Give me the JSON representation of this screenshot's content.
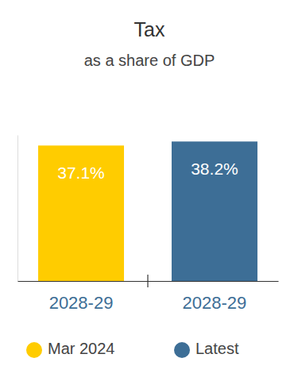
{
  "chart_data": {
    "type": "bar",
    "title": "Tax",
    "subtitle": "as a share of GDP",
    "categories": [
      "2028-29",
      "2028-29"
    ],
    "series": [
      {
        "name": "Mar 2024",
        "color": "#ffcc00",
        "values": [
          37.1,
          null
        ],
        "value_labels": [
          "37.1%",
          null
        ]
      },
      {
        "name": "Latest",
        "color": "#3d6e96",
        "values": [
          null,
          38.2
        ],
        "value_labels": [
          null,
          "38.2%"
        ]
      }
    ],
    "ylim": [
      0,
      40
    ],
    "yticks": [
      0
    ],
    "grid": false,
    "legend": "bottom",
    "data_labels": true,
    "tick_labels": "x"
  }
}
